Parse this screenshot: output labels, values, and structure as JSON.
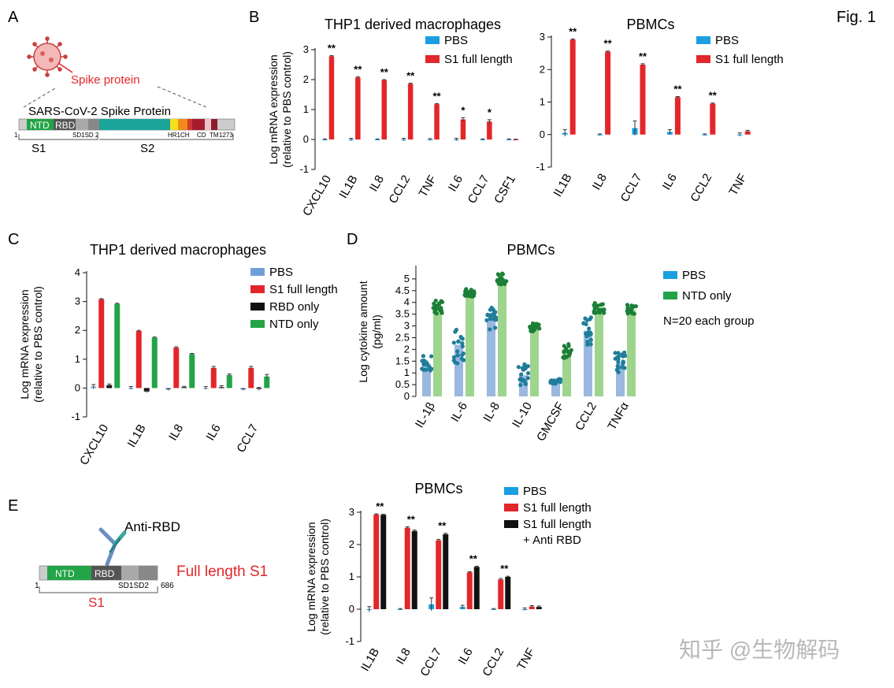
{
  "figure_label": "Fig. 1",
  "watermark": "知乎 @生物解码",
  "colors": {
    "pbs": "#1a9fe0",
    "s1": "#e3262a",
    "rbd": "#111111",
    "ntd": "#22a447",
    "pbs_light": "#9ab8e0",
    "ntd_light": "#9fd48e",
    "pbs_dot": "#1f7d9a",
    "ntd_dot": "#1c7f38"
  },
  "panels": {
    "A": {
      "label": "A",
      "spike_label": "Spike protein",
      "protein_title": "SARS-CoV-2 Spike Protein",
      "domains": {
        "ntd": "NTD",
        "rbd": "RBD",
        "sd": "SD1SD 2",
        "hr": "HR1CH",
        "cd": "CD",
        "tm": "TM"
      },
      "start": "1",
      "end": "1273",
      "s1": "S1",
      "s2": "S2"
    },
    "B": {
      "label": "B"
    },
    "C": {
      "label": "C"
    },
    "D": {
      "label": "D"
    },
    "E": {
      "label": "E",
      "antibody_label": "Anti-RBD",
      "construct_label": "Full length S1",
      "domains": {
        "ntd": "NTD",
        "rbd": "RBD",
        "sd": "SD1SD2"
      },
      "start": "1",
      "end": "686",
      "s1": "S1"
    }
  },
  "chart_data": [
    {
      "id": "B_left",
      "type": "bar",
      "title": "THP1 derived macrophages",
      "ylabel": [
        "Log mRNA expression",
        "(relative to PBS control)"
      ],
      "ylim": [
        -1,
        3
      ],
      "yticks": [
        -1,
        0,
        1,
        2,
        3
      ],
      "categories": [
        "CXCL10",
        "IL1B",
        "IL8",
        "CCL2",
        "TNF",
        "IL6",
        "CCL7",
        "CSF1"
      ],
      "series": [
        {
          "name": "PBS",
          "color": "#1a9fe0",
          "values": [
            0,
            0,
            0,
            0,
            0,
            0,
            0,
            0
          ],
          "errors": [
            0.02,
            0.04,
            0.02,
            0.04,
            0.03,
            0.04,
            0.02,
            0.02
          ]
        },
        {
          "name": "S1 full length",
          "color": "#e3262a",
          "values": [
            2.78,
            2.07,
            1.98,
            1.86,
            1.18,
            0.67,
            0.6,
            0.0
          ],
          "errors": [
            0.02,
            0.02,
            0.02,
            0.02,
            0.02,
            0.06,
            0.06,
            0.01
          ]
        }
      ],
      "significance": [
        "**",
        "**",
        "**",
        "**",
        "**",
        "*",
        "*",
        ""
      ]
    },
    {
      "id": "B_right",
      "type": "bar",
      "title": "PBMCs",
      "ylim": [
        -1,
        3
      ],
      "yticks": [
        -1,
        0,
        1,
        2,
        3
      ],
      "categories": [
        "IL1B",
        "IL8",
        "CCL7",
        "IL6",
        "CCL2",
        "TNF"
      ],
      "series": [
        {
          "name": "PBS",
          "color": "#1a9fe0",
          "values": [
            0.05,
            0.0,
            0.2,
            0.08,
            0.0,
            0.0
          ],
          "errors": [
            0.1,
            0.02,
            0.22,
            0.07,
            0.02,
            0.05
          ]
        },
        {
          "name": "S1 full length",
          "color": "#e3262a",
          "values": [
            2.92,
            2.55,
            2.15,
            1.15,
            0.95,
            0.1
          ],
          "errors": [
            0.02,
            0.02,
            0.03,
            0.02,
            0.02,
            0.03
          ]
        }
      ],
      "significance": [
        "**",
        "**",
        "**",
        "**",
        "**",
        ""
      ]
    },
    {
      "id": "C",
      "type": "bar",
      "title": "THP1 derived macrophages",
      "ylabel": [
        "Log mRNA expression",
        "(relative to PBS control)"
      ],
      "ylim": [
        -1,
        4
      ],
      "yticks": [
        -1,
        0,
        1,
        2,
        3,
        4
      ],
      "categories": [
        "CXCL10",
        "IL1B",
        "IL8",
        "IL6",
        "CCL7"
      ],
      "series": [
        {
          "name": "PBS",
          "color": "#6f9fd8",
          "values": [
            0.05,
            0.0,
            -0.05,
            0.0,
            -0.05
          ],
          "errors": [
            0.07,
            0.05,
            0.03,
            0.05,
            0.03
          ]
        },
        {
          "name": "S1 full length",
          "color": "#e3262a",
          "values": [
            3.08,
            1.98,
            1.4,
            0.7,
            0.7
          ],
          "errors": [
            0.02,
            0.02,
            0.03,
            0.05,
            0.05
          ]
        },
        {
          "name": "RBD only",
          "color": "#111111",
          "values": [
            0.1,
            -0.12,
            0.03,
            0.03,
            -0.03
          ],
          "errors": [
            0.04,
            0.04,
            0.03,
            0.05,
            0.05
          ]
        },
        {
          "name": "NTD only",
          "color": "#22a447",
          "values": [
            2.92,
            1.75,
            1.18,
            0.45,
            0.4
          ],
          "errors": [
            0.02,
            0.02,
            0.02,
            0.04,
            0.07
          ]
        }
      ]
    },
    {
      "id": "D",
      "type": "bar",
      "title": "PBMCs",
      "ylabel": [
        "Log cytokine amount",
        "(pg/ml)"
      ],
      "ylim": [
        0,
        5.5
      ],
      "yticks": [
        0,
        0.5,
        1,
        1.5,
        2,
        2.5,
        3,
        3.5,
        4,
        4.5,
        5
      ],
      "categories": [
        "IL-1β",
        "IL-6",
        "IL-8",
        "IL-10",
        "GMCSF",
        "CCL2",
        "TNFα"
      ],
      "series": [
        {
          "name": "PBS",
          "color": "#9ab8e0",
          "values": [
            1.4,
            2.2,
            3.3,
            0.9,
            0.65,
            2.8,
            1.4
          ],
          "spread": [
            0.35,
            0.8,
            0.5,
            0.5,
            0.1,
            0.6,
            0.5
          ]
        },
        {
          "name": "NTD only",
          "color": "#9fd48e",
          "values": [
            3.8,
            4.45,
            5.0,
            2.95,
            1.95,
            3.8,
            3.7
          ],
          "spread": [
            0.3,
            0.2,
            0.25,
            0.2,
            0.35,
            0.25,
            0.2
          ]
        }
      ],
      "note": "N=20 each group",
      "points_per_group": 20
    },
    {
      "id": "E",
      "type": "bar",
      "title": "PBMCs",
      "ylabel": [
        "Log mRNA expression",
        "(relative to PBS control)"
      ],
      "ylim": [
        -1,
        3
      ],
      "yticks": [
        -1,
        0,
        1,
        2,
        3
      ],
      "categories": [
        "IL1B",
        "IL8",
        "CCL7",
        "IL6",
        "CCL2",
        "TNF"
      ],
      "series": [
        {
          "name": "PBS",
          "color": "#1a9fe0",
          "values": [
            0.0,
            0.0,
            0.15,
            0.07,
            0.0,
            0.0
          ],
          "errors": [
            0.08,
            0.02,
            0.2,
            0.05,
            0.02,
            0.04
          ]
        },
        {
          "name": "S1 full length",
          "color": "#e3262a",
          "values": [
            2.93,
            2.52,
            2.13,
            1.14,
            0.92,
            0.08
          ],
          "errors": [
            0.02,
            0.03,
            0.03,
            0.02,
            0.03,
            0.03
          ]
        },
        {
          "name": "S1 full length + Anti RBD",
          "color": "#111111",
          "values": [
            2.92,
            2.42,
            2.32,
            1.31,
            1.0,
            0.07
          ],
          "errors": [
            0.02,
            0.03,
            0.03,
            0.02,
            0.02,
            0.03
          ]
        }
      ],
      "significance": [
        "**",
        "**",
        "**",
        "**",
        "**",
        ""
      ]
    }
  ]
}
